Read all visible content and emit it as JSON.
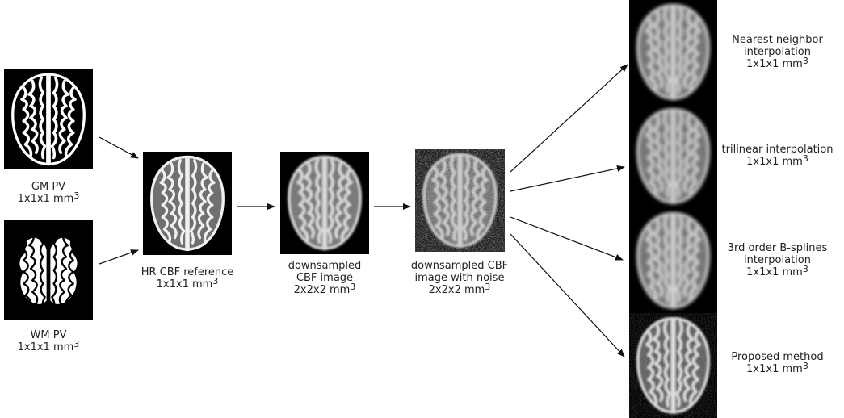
{
  "inputs": {
    "gm": {
      "label": "GM PV",
      "res": "1x1x1 mm",
      "exp": "3"
    },
    "wm": {
      "label": "WM PV",
      "res": "1x1x1 mm",
      "exp": "3"
    }
  },
  "hr": {
    "label": "HR CBF reference",
    "res": "1x1x1 mm",
    "exp": "3"
  },
  "down": {
    "line1": "downsampled",
    "line2": "CBF image",
    "res": "2x2x2 mm",
    "exp": "3"
  },
  "noise": {
    "line1": "downsampled CBF",
    "line2": "image with noise",
    "res": "2x2x2 mm",
    "exp": "3"
  },
  "outputs": [
    {
      "line1": "Nearest neighbor",
      "line2": "interpolation",
      "res": "1x1x1 mm",
      "exp": "3"
    },
    {
      "line1": "trilinear interpolation",
      "res": "1x1x1 mm",
      "exp": "3"
    },
    {
      "line1": "3rd order B-splines",
      "line2": "interpolation",
      "res": "1x1x1 mm",
      "exp": "3"
    },
    {
      "line1": "Proposed method",
      "res": "1x1x1 mm",
      "exp": "3"
    }
  ]
}
